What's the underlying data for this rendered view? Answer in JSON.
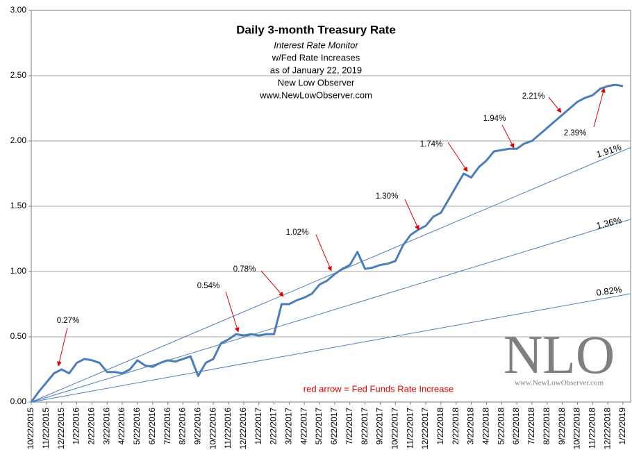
{
  "chart_data": {
    "type": "line",
    "title": "Daily 3-month Treasury Rate",
    "subtitle_lines": [
      "Interest Rate Monitor",
      "w/Fed Rate Increases",
      "as of January 22, 2019",
      "New Low Observer",
      "www.NewLowObserver.com"
    ],
    "note": "red arrow = Fed Funds Rate Increase",
    "logo": "NLO",
    "logo_url": "www.NewLowObserver.com",
    "categories": [
      "10/22/2015",
      null,
      "11/22/2015",
      null,
      "12/22/2015",
      null,
      "1/22/2016",
      null,
      "2/22/2016",
      null,
      "3/22/2016",
      null,
      "4/22/2016",
      null,
      "5/22/2016",
      null,
      "6/22/2016",
      null,
      "7/22/2016",
      null,
      "8/22/2016",
      null,
      "9/22/2016",
      null,
      "10/22/2016",
      null,
      "11/22/2016",
      null,
      "12/22/2016",
      null,
      "1/22/2017",
      null,
      "2/22/2017",
      null,
      "3/22/2017",
      null,
      "4/22/2017",
      null,
      "5/22/2017",
      null,
      "6/22/2017",
      null,
      "7/22/2017",
      null,
      "8/22/2017",
      null,
      "9/22/2017",
      null,
      "10/22/2017",
      null,
      "11/22/2017",
      null,
      "12/22/2017",
      null,
      "1/22/2018",
      null,
      "2/22/2018",
      null,
      "3/22/2018",
      null,
      "4/22/2018",
      null,
      "5/22/2018",
      null,
      "6/22/2018",
      null,
      "7/22/2018",
      null,
      "8/22/2018",
      null,
      "9/22/2018",
      null,
      "10/22/2018",
      null,
      "11/22/2018",
      null,
      "12/22/2018",
      null,
      "1/22/2019"
    ],
    "series": [
      {
        "name": "3-month Treasury",
        "color": "#4a7ebb",
        "values": [
          0.0,
          0.08,
          0.15,
          0.22,
          0.25,
          0.22,
          0.3,
          0.33,
          0.32,
          0.3,
          0.23,
          0.23,
          0.22,
          0.25,
          0.32,
          0.28,
          0.27,
          0.3,
          0.32,
          0.31,
          0.33,
          0.35,
          0.2,
          0.3,
          0.33,
          0.45,
          0.48,
          0.52,
          0.51,
          0.52,
          0.51,
          0.52,
          0.52,
          0.75,
          0.75,
          0.78,
          0.8,
          0.83,
          0.9,
          0.93,
          0.98,
          1.02,
          1.05,
          1.15,
          1.02,
          1.03,
          1.05,
          1.06,
          1.08,
          1.2,
          1.28,
          1.32,
          1.35,
          1.42,
          1.45,
          1.55,
          1.65,
          1.75,
          1.72,
          1.8,
          1.85,
          1.92,
          1.93,
          1.94,
          1.94,
          1.98,
          2.0,
          2.05,
          2.1,
          2.15,
          2.2,
          2.25,
          2.3,
          2.33,
          2.35,
          2.4,
          2.42,
          2.43,
          2.42
        ]
      }
    ],
    "trend_lines": [
      {
        "label": "1.91%",
        "color": "#4a7ebb",
        "values": [
          0,
          1.95
        ]
      },
      {
        "label": "1.36%",
        "color": "#4a7ebb",
        "values": [
          0,
          1.4
        ]
      },
      {
        "label": "0.82%",
        "color": "#4a7ebb",
        "values": [
          0,
          0.83
        ]
      }
    ],
    "annotations": [
      "0.27%",
      "0.54%",
      "0.78%",
      "1.02%",
      "1.30%",
      "1.74%",
      "1.94%",
      "2.21%",
      "2.39%"
    ],
    "annotation_color": "#e00000",
    "ylim": [
      0,
      3
    ],
    "yticks": [
      {
        "value": 0,
        "label": "0.00"
      },
      {
        "value": 0.5,
        "label": "0.50"
      },
      {
        "value": 1,
        "label": "1.00"
      },
      {
        "value": 1.5,
        "label": "1.50"
      },
      {
        "value": 2,
        "label": "2.00"
      },
      {
        "value": 2.5,
        "label": "2.50"
      },
      {
        "value": 3,
        "label": "3.00"
      }
    ],
    "grid": true
  }
}
